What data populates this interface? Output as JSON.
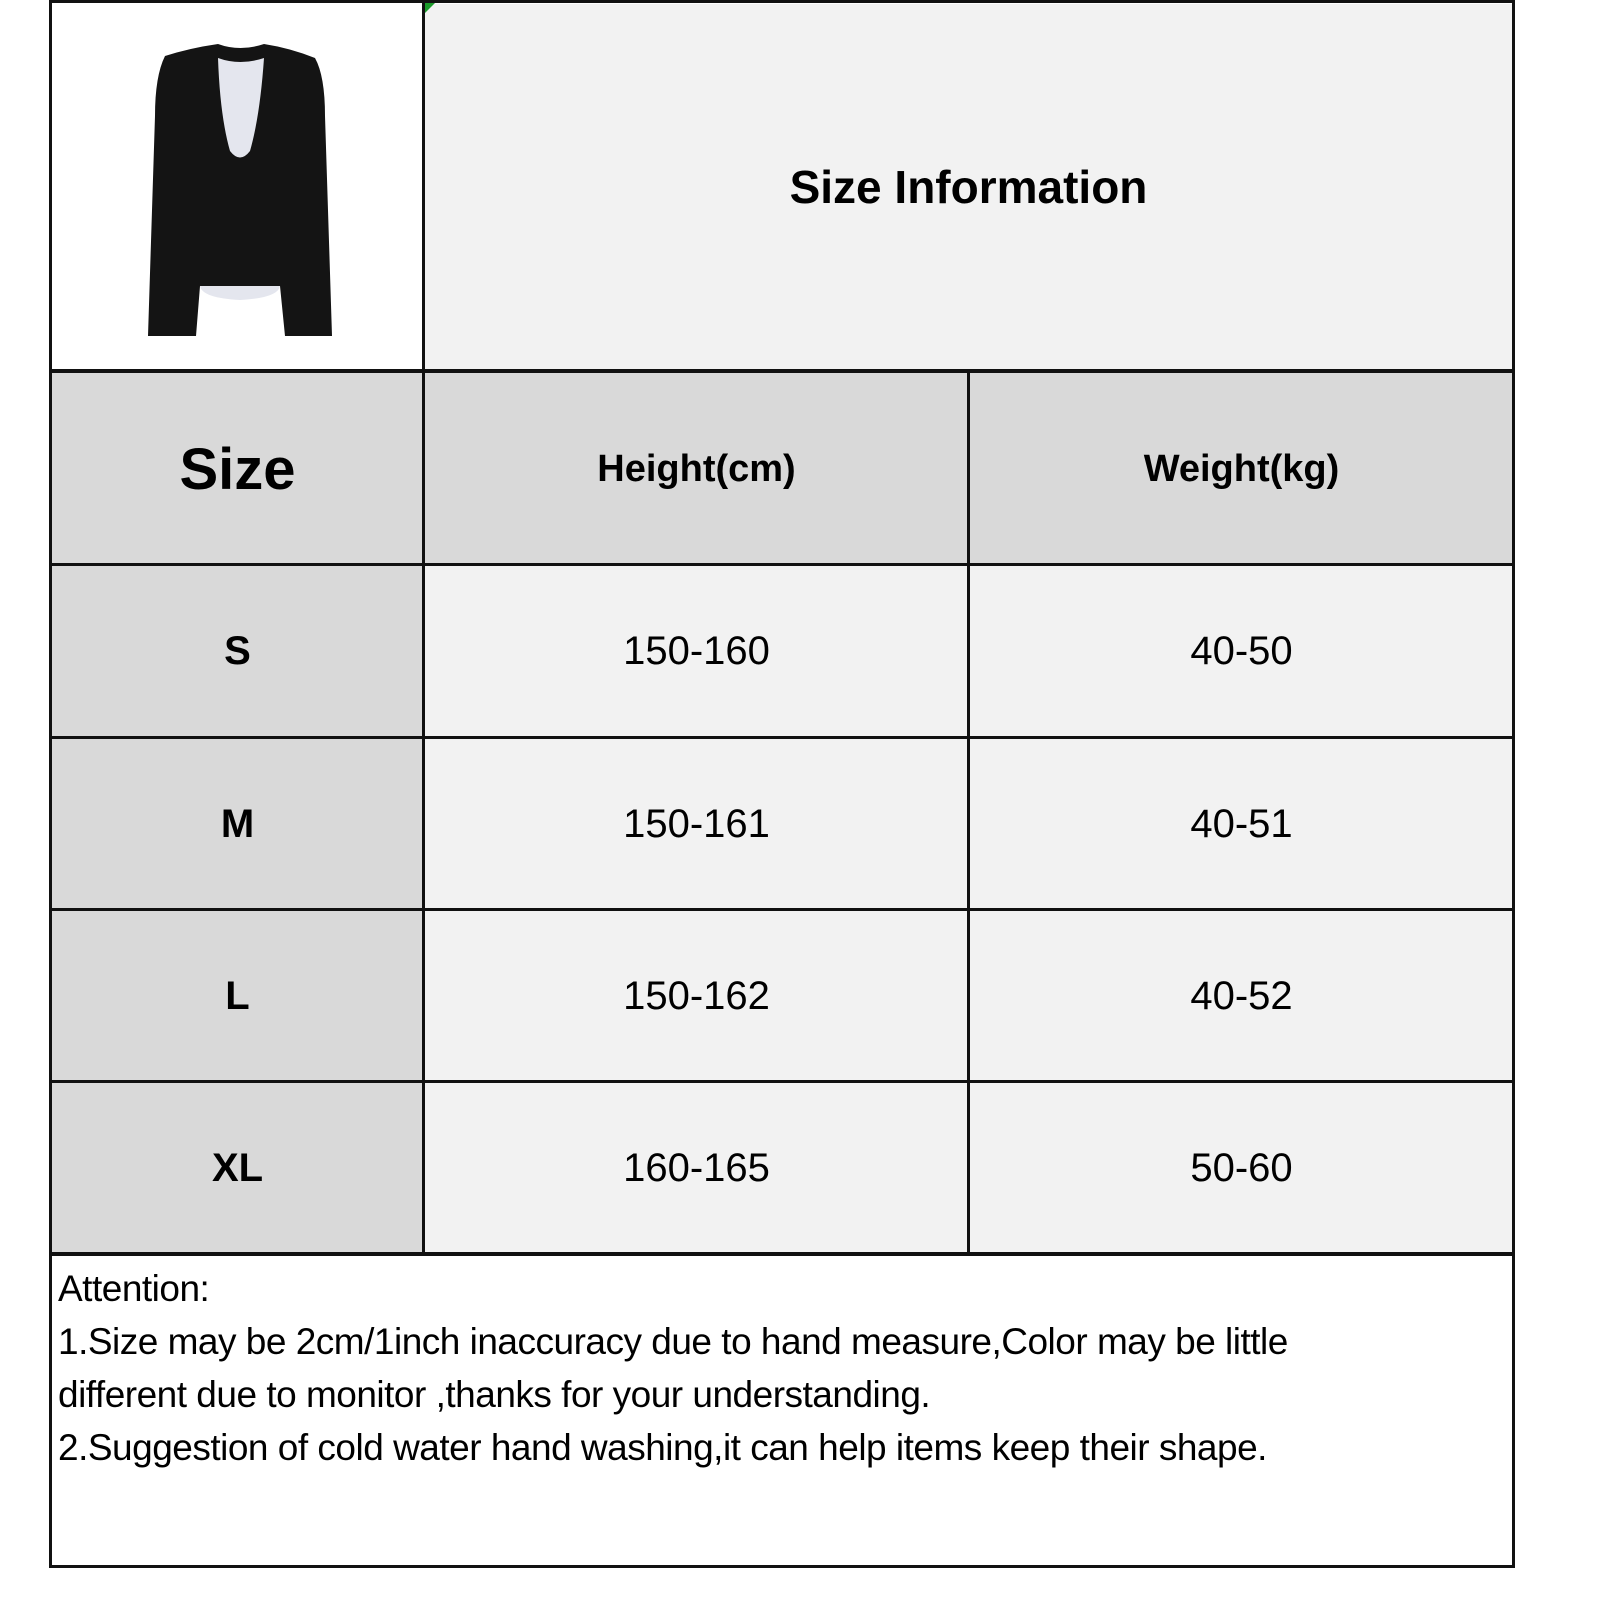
{
  "header": {
    "title": "Size Information",
    "product_image": "black-long-sleeve-top-with-white-layer"
  },
  "table": {
    "columns": [
      "Size",
      "Height(cm)",
      "Weight(kg)"
    ],
    "rows": [
      {
        "size": "S",
        "height": "150-160",
        "weight": "40-50"
      },
      {
        "size": "M",
        "height": "150-161",
        "weight": "40-51"
      },
      {
        "size": "L",
        "height": "150-162",
        "weight": "40-52"
      },
      {
        "size": "XL",
        "height": "160-165",
        "weight": "50-60"
      }
    ]
  },
  "attention": {
    "title": "Attention:",
    "line1a": "1.Size may be 2cm/1inch inaccuracy due to hand measure,Color may be little",
    "line1b": "different due to monitor ,thanks for your understanding.",
    "line2": "2.Suggestion of cold water hand washing,it can help items keep their shape."
  },
  "colors": {
    "header_bg": "#d9d9d9",
    "cell_bg": "#f2f2f2",
    "border": "#111111"
  }
}
